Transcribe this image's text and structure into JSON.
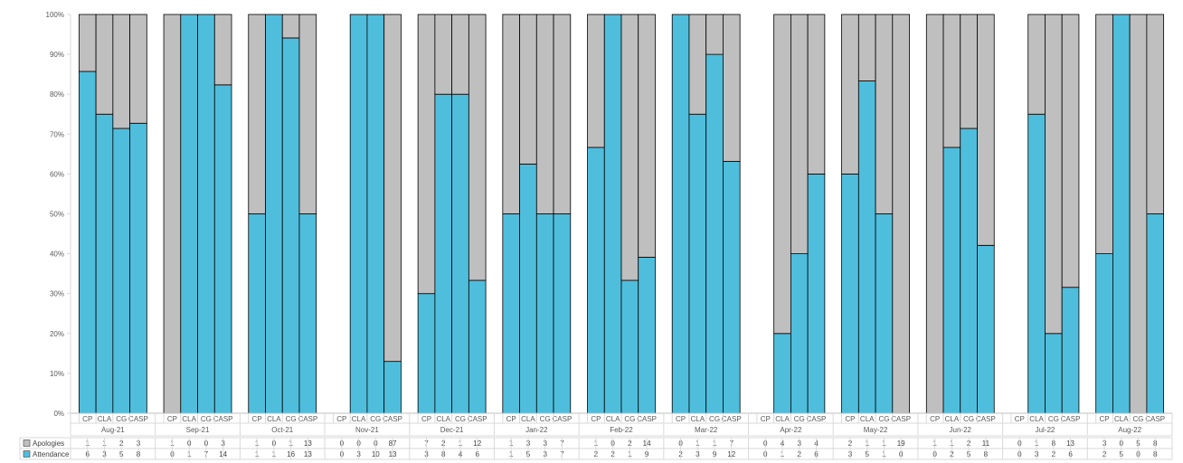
{
  "chart_data": {
    "type": "bar",
    "stacked": "percent",
    "grid": false,
    "legend": "data-table-left",
    "ylim": [
      0,
      100
    ],
    "y_ticks": [
      "0%",
      "10%",
      "20%",
      "30%",
      "40%",
      "50%",
      "60%",
      "70%",
      "80%",
      "90%",
      "100%"
    ],
    "subcategories": [
      "CP",
      "CLA",
      "CG",
      "CASP"
    ],
    "groups": [
      "Aug-21",
      "Sep-21",
      "Oct-21",
      "Nov-21",
      "Dec-21",
      "Jan-22",
      "Feb-22",
      "Mar-22",
      "Apr-22",
      "May-22",
      "Jun-22",
      "Jul-22",
      "Aug-22"
    ],
    "series": [
      {
        "name": "Apologies",
        "color": "#BFBFBF",
        "values": [
          [
            1,
            1,
            2,
            3
          ],
          [
            1,
            0,
            0,
            3
          ],
          [
            1,
            0,
            1,
            13
          ],
          [
            0,
            0,
            0,
            87
          ],
          [
            7,
            2,
            1,
            12
          ],
          [
            1,
            3,
            3,
            7
          ],
          [
            1,
            0,
            2,
            14
          ],
          [
            0,
            1,
            1,
            7
          ],
          [
            0,
            4,
            3,
            4
          ],
          [
            2,
            1,
            1,
            19
          ],
          [
            1,
            1,
            2,
            11
          ],
          [
            0,
            1,
            8,
            13
          ],
          [
            3,
            0,
            5,
            8
          ]
        ]
      },
      {
        "name": "Attendance",
        "color": "#4FBEDD",
        "values": [
          [
            6,
            3,
            5,
            8
          ],
          [
            0,
            1,
            7,
            14
          ],
          [
            1,
            1,
            16,
            13
          ],
          [
            0,
            3,
            10,
            13
          ],
          [
            3,
            8,
            4,
            6
          ],
          [
            1,
            5,
            3,
            7
          ],
          [
            2,
            2,
            1,
            9
          ],
          [
            2,
            3,
            9,
            12
          ],
          [
            0,
            1,
            2,
            6
          ],
          [
            3,
            5,
            1,
            0
          ],
          [
            0,
            2,
            5,
            8
          ],
          [
            0,
            3,
            2,
            6
          ],
          [
            2,
            5,
            0,
            8
          ]
        ]
      }
    ]
  }
}
